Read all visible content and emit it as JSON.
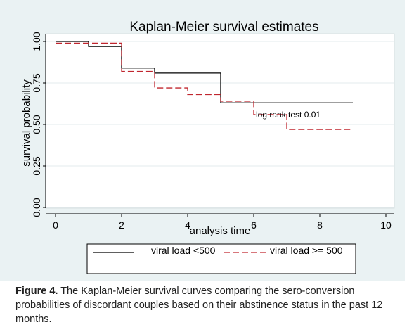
{
  "chart_data": {
    "type": "line",
    "title": "Kaplan-Meier survival estimates",
    "xlabel": "analysis time",
    "ylabel": "survival probability",
    "xlim": [
      0,
      10
    ],
    "ylim": [
      0,
      1
    ],
    "xticks": [
      "0",
      "2",
      "4",
      "6",
      "8",
      "10"
    ],
    "yticks": [
      "0.00",
      "0.25",
      "0.50",
      "0.75",
      "1.00"
    ],
    "grid": true,
    "legend_position": "bottom",
    "series": [
      {
        "name": "viral load <500",
        "style": "solid",
        "color": "#000000",
        "x": [
          0,
          1,
          2,
          3,
          5,
          9
        ],
        "y": [
          1.0,
          0.97,
          0.84,
          0.81,
          0.63,
          0.63
        ]
      },
      {
        "name": "viral load >= 500",
        "style": "dashed",
        "color": "#c0262f",
        "x": [
          0,
          2,
          3,
          4,
          5,
          6,
          7,
          9
        ],
        "y": [
          0.99,
          0.82,
          0.72,
          0.68,
          0.64,
          0.56,
          0.47,
          0.47
        ]
      }
    ],
    "annotations": [
      {
        "text": "log rank test 0.01",
        "x": 7,
        "y": 0.56
      }
    ]
  },
  "caption": {
    "label": "Figure 4.",
    "text": " The Kaplan-Meier survival curves comparing the sero-conversion probabilities of discordant couples based on their abstinence status in the past 12 months."
  },
  "colors": {
    "panel_background": "#eaf2f3",
    "plot_background": "#ffffff",
    "series_solid": "#000000",
    "series_dashed": "#c0262f"
  }
}
